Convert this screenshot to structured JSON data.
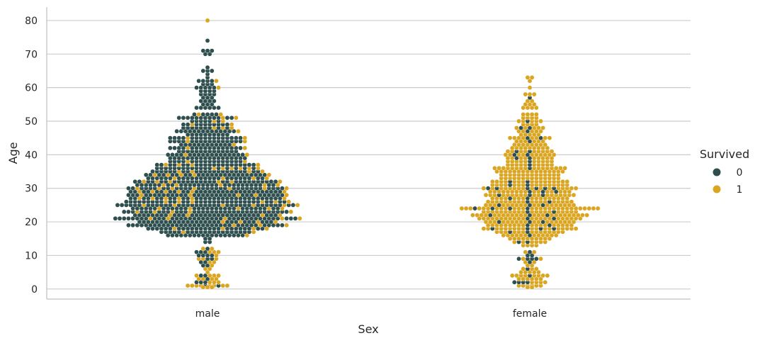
{
  "chart_data": {
    "type": "scatter",
    "subtype": "swarm",
    "x_field": "Sex",
    "y_field": "Age",
    "hue_field": "Survived",
    "xlabel": "Sex",
    "ylabel": "Age",
    "categories": [
      "male",
      "female"
    ],
    "ylim": [
      -3,
      84
    ],
    "yticks": [
      0,
      10,
      20,
      30,
      40,
      50,
      60,
      70,
      80
    ],
    "grid": "horizontal",
    "legend": {
      "title": "Survived",
      "placement": "right",
      "entries": [
        "0",
        "1"
      ]
    },
    "colors": {
      "0": "#2f4f4f",
      "1": "#daa520"
    },
    "series": [
      {
        "name": "0",
        "category": "male",
        "bins": [
          [
            74,
            1
          ],
          [
            71,
            3
          ],
          [
            70,
            2
          ],
          [
            66,
            1
          ],
          [
            65,
            3
          ],
          [
            64,
            1
          ],
          [
            63,
            1
          ],
          [
            62,
            4
          ],
          [
            61,
            3
          ],
          [
            60,
            5
          ],
          [
            59,
            4
          ],
          [
            58,
            4
          ],
          [
            57,
            3
          ],
          [
            56,
            4
          ],
          [
            55,
            3
          ],
          [
            54,
            6
          ],
          [
            52,
            5
          ],
          [
            51,
            12
          ],
          [
            50,
            6
          ],
          [
            49,
            10
          ],
          [
            48,
            9
          ],
          [
            47,
            14
          ],
          [
            46,
            10
          ],
          [
            45,
            16
          ],
          [
            44,
            16
          ],
          [
            43,
            12
          ],
          [
            42,
            16
          ],
          [
            41,
            14
          ],
          [
            40,
            17
          ],
          [
            39,
            18
          ],
          [
            38,
            16
          ],
          [
            37,
            20
          ],
          [
            36,
            18
          ],
          [
            35,
            22
          ],
          [
            34,
            24
          ],
          [
            33,
            24
          ],
          [
            32,
            28
          ],
          [
            31,
            28
          ],
          [
            30,
            30
          ],
          [
            29,
            30
          ],
          [
            28,
            32
          ],
          [
            27,
            30
          ],
          [
            26,
            32
          ],
          [
            25,
            36
          ],
          [
            24,
            30
          ],
          [
            23,
            34
          ],
          [
            22,
            30
          ],
          [
            21,
            38
          ],
          [
            20,
            28
          ],
          [
            19,
            34
          ],
          [
            18,
            24
          ],
          [
            17,
            20
          ],
          [
            16,
            18
          ],
          [
            15,
            2
          ],
          [
            14,
            2
          ],
          [
            12,
            1
          ],
          [
            11,
            3
          ],
          [
            10,
            4
          ],
          [
            9,
            2
          ],
          [
            8,
            2
          ],
          [
            7,
            2
          ],
          [
            4,
            2
          ],
          [
            3,
            1
          ],
          [
            2,
            3
          ],
          [
            1,
            2
          ]
        ]
      },
      {
        "name": "1",
        "category": "male",
        "bins": [
          [
            80,
            1
          ],
          [
            62,
            1
          ],
          [
            60,
            1
          ],
          [
            52,
            2
          ],
          [
            51,
            2
          ],
          [
            50,
            2
          ],
          [
            49,
            2
          ],
          [
            48,
            3
          ],
          [
            47,
            1
          ],
          [
            45,
            2
          ],
          [
            44,
            2
          ],
          [
            43,
            1
          ],
          [
            42,
            2
          ],
          [
            40,
            2
          ],
          [
            38,
            2
          ],
          [
            37,
            4
          ],
          [
            36,
            6
          ],
          [
            35,
            4
          ],
          [
            34,
            5
          ],
          [
            33,
            4
          ],
          [
            32,
            6
          ],
          [
            31,
            5
          ],
          [
            30,
            7
          ],
          [
            29,
            6
          ],
          [
            28,
            5
          ],
          [
            27,
            6
          ],
          [
            26,
            6
          ],
          [
            25,
            6
          ],
          [
            24,
            5
          ],
          [
            23,
            5
          ],
          [
            22,
            4
          ],
          [
            21,
            5
          ],
          [
            20,
            4
          ],
          [
            19,
            3
          ],
          [
            18,
            4
          ],
          [
            17,
            2
          ],
          [
            16,
            1
          ],
          [
            12,
            2
          ],
          [
            11,
            3
          ],
          [
            10,
            1
          ],
          [
            9,
            3
          ],
          [
            8,
            2
          ],
          [
            7,
            1
          ],
          [
            6,
            2
          ],
          [
            5,
            1
          ],
          [
            4,
            4
          ],
          [
            3,
            4
          ],
          [
            2,
            3
          ],
          [
            1,
            8
          ],
          [
            0.5,
            3
          ]
        ]
      },
      {
        "name": "0",
        "category": "female",
        "bins": [
          [
            57,
            1
          ],
          [
            50,
            1
          ],
          [
            48,
            2
          ],
          [
            47,
            1
          ],
          [
            45,
            2
          ],
          [
            44,
            1
          ],
          [
            41,
            2
          ],
          [
            40,
            2
          ],
          [
            39,
            2
          ],
          [
            38,
            1
          ],
          [
            37,
            1
          ],
          [
            36,
            1
          ],
          [
            32,
            2
          ],
          [
            31,
            2
          ],
          [
            30,
            6
          ],
          [
            29,
            3
          ],
          [
            28,
            3
          ],
          [
            27,
            2
          ],
          [
            26,
            2
          ],
          [
            25,
            3
          ],
          [
            24,
            4
          ],
          [
            23,
            2
          ],
          [
            22,
            3
          ],
          [
            21,
            2
          ],
          [
            20,
            3
          ],
          [
            19,
            2
          ],
          [
            18,
            4
          ],
          [
            17,
            2
          ],
          [
            16,
            1
          ],
          [
            14,
            2
          ],
          [
            11,
            1
          ],
          [
            10,
            2
          ],
          [
            9,
            4
          ],
          [
            8,
            1
          ],
          [
            6,
            1
          ],
          [
            4,
            1
          ],
          [
            2,
            4
          ]
        ]
      },
      {
        "name": "1",
        "category": "female",
        "bins": [
          [
            63,
            2
          ],
          [
            62,
            1
          ],
          [
            60,
            1
          ],
          [
            58,
            3
          ],
          [
            56,
            2
          ],
          [
            55,
            3
          ],
          [
            54,
            4
          ],
          [
            52,
            4
          ],
          [
            51,
            4
          ],
          [
            50,
            5
          ],
          [
            49,
            4
          ],
          [
            48,
            5
          ],
          [
            47,
            5
          ],
          [
            46,
            5
          ],
          [
            45,
            8
          ],
          [
            44,
            6
          ],
          [
            43,
            8
          ],
          [
            42,
            9
          ],
          [
            41,
            9
          ],
          [
            40,
            10
          ],
          [
            39,
            9
          ],
          [
            38,
            10
          ],
          [
            37,
            10
          ],
          [
            36,
            16
          ],
          [
            35,
            16
          ],
          [
            34,
            14
          ],
          [
            33,
            14
          ],
          [
            32,
            16
          ],
          [
            31,
            16
          ],
          [
            30,
            16
          ],
          [
            29,
            16
          ],
          [
            28,
            18
          ],
          [
            27,
            16
          ],
          [
            26,
            18
          ],
          [
            25,
            18
          ],
          [
            24,
            28
          ],
          [
            23,
            20
          ],
          [
            22,
            24
          ],
          [
            21,
            22
          ],
          [
            20,
            18
          ],
          [
            19,
            18
          ],
          [
            18,
            18
          ],
          [
            17,
            14
          ],
          [
            16,
            12
          ],
          [
            15,
            10
          ],
          [
            14,
            6
          ],
          [
            13,
            4
          ],
          [
            11,
            2
          ],
          [
            9,
            2
          ],
          [
            8,
            2
          ],
          [
            7,
            2
          ],
          [
            6,
            3
          ],
          [
            5,
            5
          ],
          [
            4,
            8
          ],
          [
            3,
            6
          ],
          [
            2,
            4
          ],
          [
            1,
            6
          ],
          [
            0.5,
            2
          ]
        ]
      }
    ]
  }
}
